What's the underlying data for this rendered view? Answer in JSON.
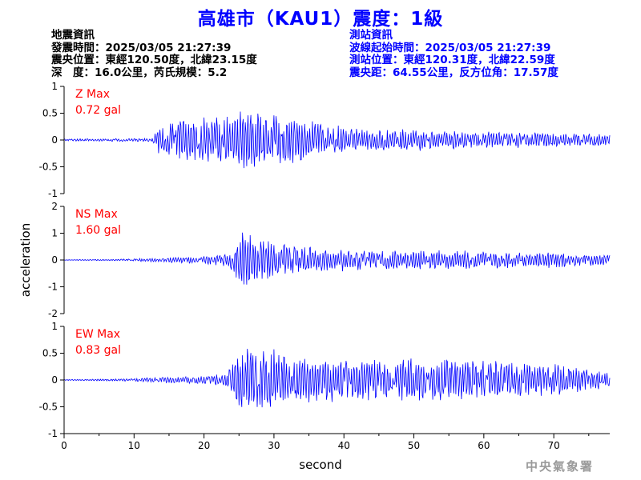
{
  "title": "高雄市（KAU1）震度：1級",
  "event_info": {
    "heading": "地震資訊",
    "origin_time": "發震時間：2025/03/05 21:27:39",
    "epicenter": "震央位置：東經120.50度，北緯23.15度",
    "depth_magnitude": "深　度：16.0公里，芮氏規模：5.2"
  },
  "station_info": {
    "heading": "測站資訊",
    "wave_start_time": "波線起始時間：2025/03/05 21:27:39",
    "station_location": "測站位置：東經120.31度，北緯22.59度",
    "distance_azimuth": "震央距：64.55公里，反方位角：17.57度"
  },
  "watermark": "中央氣象署",
  "colors": {
    "trace": "#0000ff",
    "max_label": "#ff0000",
    "axis": "#000000",
    "title": "#0000ff"
  },
  "chart_data": {
    "type": "line",
    "xlabel": "second",
    "ylabel": "acceleration",
    "xlim": [
      0,
      78
    ],
    "xticks": [
      0,
      10,
      20,
      30,
      40,
      50,
      60,
      70
    ],
    "grid": false,
    "sample_interval_s": 0.1,
    "panels": [
      {
        "name": "Z Max",
        "max_label": "0.72 gal",
        "ylim": [
          -1,
          1
        ],
        "yticks": [
          1,
          0.5,
          0,
          -0.5,
          -1
        ],
        "envelope": [
          [
            0,
            0.02
          ],
          [
            12.5,
            0.03
          ],
          [
            13.5,
            0.28
          ],
          [
            17,
            0.38
          ],
          [
            20,
            0.42
          ],
          [
            24,
            0.48
          ],
          [
            26,
            0.58
          ],
          [
            28,
            0.5
          ],
          [
            31,
            0.5
          ],
          [
            35,
            0.38
          ],
          [
            40,
            0.26
          ],
          [
            45,
            0.2
          ],
          [
            50,
            0.22
          ],
          [
            55,
            0.18
          ],
          [
            60,
            0.16
          ],
          [
            66,
            0.15
          ],
          [
            70,
            0.14
          ],
          [
            75,
            0.12
          ],
          [
            78,
            0.1
          ]
        ]
      },
      {
        "name": "NS Max",
        "max_label": "1.60 gal",
        "ylim": [
          -2,
          2
        ],
        "yticks": [
          2,
          1,
          0,
          -1,
          -2
        ],
        "envelope": [
          [
            0,
            0.01
          ],
          [
            8,
            0.03
          ],
          [
            13,
            0.08
          ],
          [
            20,
            0.14
          ],
          [
            23.5,
            0.25
          ],
          [
            24.5,
            0.9
          ],
          [
            25.5,
            1.3
          ],
          [
            27,
            0.8
          ],
          [
            29,
            0.75
          ],
          [
            32,
            0.6
          ],
          [
            35,
            0.5
          ],
          [
            40,
            0.42
          ],
          [
            45,
            0.38
          ],
          [
            50,
            0.4
          ],
          [
            55,
            0.38
          ],
          [
            60,
            0.35
          ],
          [
            65,
            0.3
          ],
          [
            70,
            0.3
          ],
          [
            74,
            0.24
          ],
          [
            78,
            0.2
          ]
        ]
      },
      {
        "name": "EW Max",
        "max_label": "0.83 gal",
        "ylim": [
          -1,
          1
        ],
        "yticks": [
          1,
          0.5,
          0,
          -0.5,
          -1
        ],
        "envelope": [
          [
            0,
            0.01
          ],
          [
            8,
            0.02
          ],
          [
            12,
            0.04
          ],
          [
            16,
            0.06
          ],
          [
            20,
            0.08
          ],
          [
            23,
            0.12
          ],
          [
            24.5,
            0.45
          ],
          [
            26,
            0.65
          ],
          [
            28,
            0.62
          ],
          [
            30,
            0.58
          ],
          [
            33,
            0.45
          ],
          [
            38,
            0.42
          ],
          [
            42,
            0.38
          ],
          [
            48,
            0.4
          ],
          [
            52,
            0.42
          ],
          [
            56,
            0.4
          ],
          [
            60,
            0.38
          ],
          [
            65,
            0.32
          ],
          [
            70,
            0.3
          ],
          [
            75,
            0.2
          ],
          [
            78,
            0.16
          ]
        ]
      }
    ]
  }
}
